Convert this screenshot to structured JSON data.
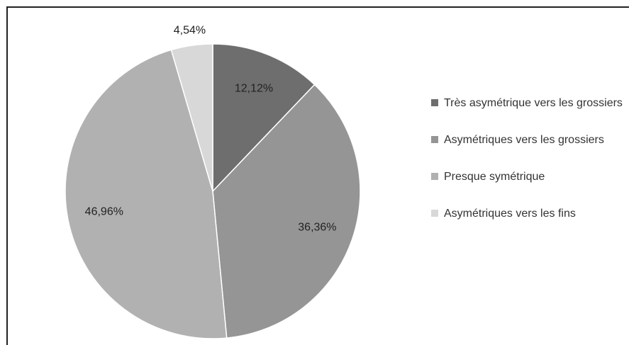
{
  "chart_data": {
    "type": "pie",
    "categories": [
      "Très asymétrique vers les grossiers",
      "Asymétriques vers les grossiers",
      "Presque symétrique",
      "Asymétriques vers les fins"
    ],
    "values": [
      12.12,
      36.36,
      46.96,
      4.54
    ],
    "value_labels": [
      "12,12%",
      "36,36%",
      "46,96%",
      "4,54%"
    ],
    "colors": [
      "#6e6e6e",
      "#959595",
      "#b1b1b1",
      "#d8d8d8"
    ],
    "legend": "right"
  }
}
